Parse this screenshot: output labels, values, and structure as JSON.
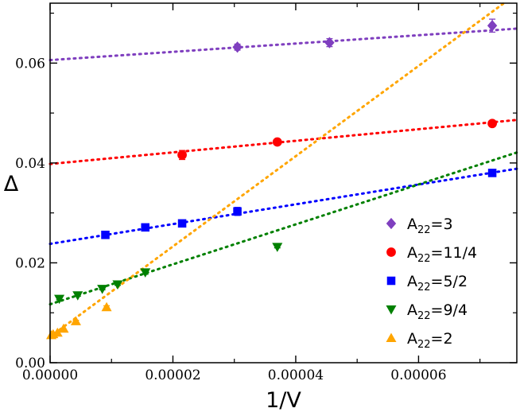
{
  "chart_data": {
    "type": "scatter",
    "title": "",
    "xlabel": "1/V",
    "ylabel": "Δ",
    "xlim": [
      0,
      7.6e-05
    ],
    "ylim": [
      0,
      0.072
    ],
    "x_ticks": [
      0,
      2e-05,
      4e-05,
      6e-05
    ],
    "x_tick_labels": [
      "0.00000",
      "0.00002",
      "0.00004",
      "0.00006"
    ],
    "y_ticks": [
      0,
      0.02,
      0.04,
      0.06
    ],
    "y_tick_labels": [
      "0.00",
      "0.02",
      "0.04",
      "0.06"
    ],
    "grid": false,
    "legend_position": "bottom-right",
    "series": [
      {
        "name": "A22=3",
        "legend_base": "A",
        "legend_sub": "22",
        "legend_rest": "=3",
        "marker": "diamond",
        "color": "#7f3fbf",
        "x": [
          3.05e-05,
          4.55e-05,
          7.2e-05
        ],
        "y": [
          0.0632,
          0.0641,
          0.0675
        ],
        "err": [
          0.0006,
          0.0008,
          0.0013
        ],
        "fit": {
          "intercept": 0.0606,
          "slope": 83
        }
      },
      {
        "name": "A22=11/4",
        "legend_base": "A",
        "legend_sub": "22",
        "legend_rest": "=11/4",
        "marker": "circle",
        "color": "#ff0000",
        "x": [
          2.15e-05,
          3.7e-05,
          7.2e-05
        ],
        "y": [
          0.0416,
          0.0442,
          0.0479
        ],
        "err": [
          0.0009,
          0.0004,
          0.0004
        ],
        "fit": {
          "intercept": 0.0398,
          "slope": 116
        }
      },
      {
        "name": "A22=5/2",
        "legend_base": "A",
        "legend_sub": "22",
        "legend_rest": "=5/2",
        "marker": "square",
        "color": "#0000ff",
        "x": [
          9e-06,
          1.55e-05,
          2.15e-05,
          3.05e-05,
          7.2e-05
        ],
        "y": [
          0.0256,
          0.0271,
          0.0279,
          0.0303,
          0.038
        ],
        "err": [
          0.0002,
          0.0002,
          0.0003,
          0.0008,
          0.0003
        ],
        "fit": {
          "intercept": 0.0238,
          "slope": 198
        }
      },
      {
        "name": "A22=9/4",
        "legend_base": "A",
        "legend_sub": "22",
        "legend_rest": "=9/4",
        "marker": "triangle-down",
        "color": "#008000",
        "x": [
          1.5e-06,
          4.5e-06,
          8.5e-06,
          1.1e-05,
          1.55e-05,
          3.7e-05
        ],
        "y": [
          0.0128,
          0.0135,
          0.0148,
          0.0157,
          0.0181,
          0.0232
        ],
        "err": [
          0.0002,
          0.0002,
          0.0002,
          0.0002,
          0.0004,
          0.0002
        ],
        "fit": {
          "intercept": 0.0117,
          "slope": 400
        }
      },
      {
        "name": "A22=2",
        "legend_base": "A",
        "legend_sub": "22",
        "legend_rest": "=2",
        "marker": "triangle-up",
        "color": "#ffa500",
        "x": [
          2e-07,
          5e-07,
          1.2e-06,
          2.2e-06,
          4.2e-06,
          9.2e-06
        ],
        "y": [
          0.0055,
          0.0057,
          0.006,
          0.0068,
          0.0083,
          0.0111
        ],
        "err": [
          0.0001,
          0.0001,
          0.0001,
          0.0001,
          0.0002,
          0.0003
        ],
        "fit": {
          "intercept": 0.0052,
          "slope": 904
        }
      }
    ]
  }
}
